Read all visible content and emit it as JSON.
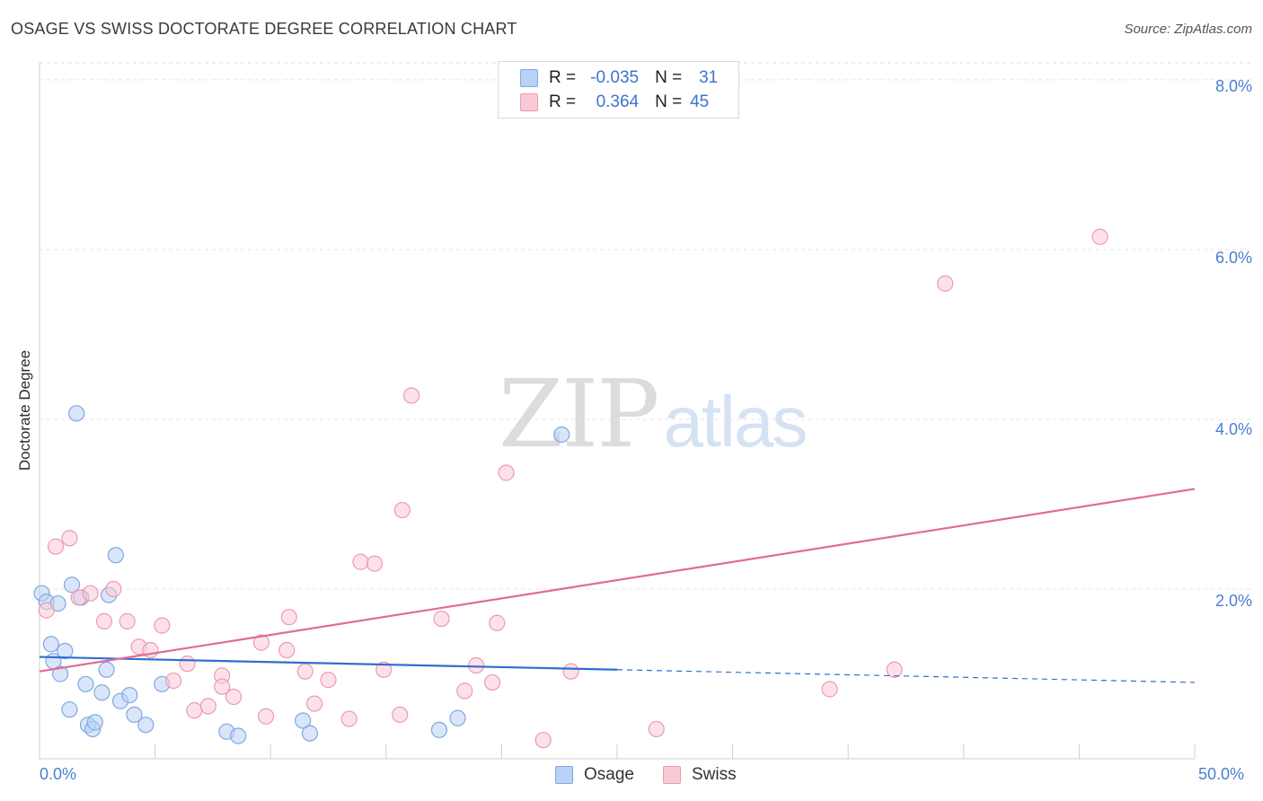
{
  "title": "OSAGE VS SWISS DOCTORATE DEGREE CORRELATION CHART",
  "source": "Source: ZipAtlas.com",
  "watermark": {
    "part1": "ZIP",
    "part2": "atlas"
  },
  "legend": {
    "rows": [
      {
        "r_label": "R =",
        "r_value": "-0.035",
        "n_label": "N =",
        "n_value": "31",
        "color": "#7fa8e0"
      },
      {
        "r_label": "R =",
        "r_value": "0.364",
        "n_label": "N =",
        "n_value": "45",
        "color": "#ec9ab2"
      }
    ]
  },
  "bottom_legend": [
    {
      "label": "Osage",
      "color": "#b9d2f5"
    },
    {
      "label": "Swiss",
      "color": "#f9cad6"
    }
  ],
  "chart_data": {
    "type": "scatter",
    "title": "OSAGE VS SWISS DOCTORATE DEGREE CORRELATION CHART",
    "xlabel": "",
    "ylabel": "Doctorate Degree",
    "xlim": [
      0,
      50
    ],
    "ylim": [
      0,
      8.2
    ],
    "x_tick_labels": [
      "0.0%",
      "50.0%"
    ],
    "y_ticks": [
      2,
      4,
      6,
      8
    ],
    "y_tick_labels": [
      "2.0%",
      "4.0%",
      "6.0%",
      "8.0%"
    ],
    "grid": true,
    "series": [
      {
        "name": "Osage",
        "color": "#7fa8e0",
        "fill": "#b9d2f5",
        "trend": {
          "x0": 0,
          "y0": 1.2,
          "x1": 25,
          "y1": 1.05,
          "dashed_to_x": 50,
          "dashed_to_y": 0.9,
          "line_color": "#2f6fcf"
        },
        "points": [
          [
            0.1,
            1.95
          ],
          [
            0.3,
            1.85
          ],
          [
            0.8,
            1.83
          ],
          [
            1.4,
            2.05
          ],
          [
            1.6,
            4.07
          ],
          [
            1.8,
            1.9
          ],
          [
            3.0,
            1.93
          ],
          [
            3.3,
            2.4
          ],
          [
            0.5,
            1.35
          ],
          [
            0.6,
            1.15
          ],
          [
            1.1,
            1.27
          ],
          [
            0.9,
            1.0
          ],
          [
            2.0,
            0.88
          ],
          [
            2.9,
            1.05
          ],
          [
            2.7,
            0.78
          ],
          [
            3.5,
            0.68
          ],
          [
            3.9,
            0.75
          ],
          [
            5.3,
            0.88
          ],
          [
            1.3,
            0.58
          ],
          [
            2.1,
            0.4
          ],
          [
            2.3,
            0.35
          ],
          [
            2.4,
            0.43
          ],
          [
            4.1,
            0.52
          ],
          [
            4.6,
            0.4
          ],
          [
            8.1,
            0.32
          ],
          [
            8.6,
            0.27
          ],
          [
            11.4,
            0.45
          ],
          [
            11.7,
            0.3
          ],
          [
            17.3,
            0.34
          ],
          [
            18.1,
            0.48
          ],
          [
            22.6,
            3.82
          ]
        ]
      },
      {
        "name": "Swiss",
        "color": "#ec9ab2",
        "fill": "#f9cad6",
        "trend": {
          "x0": 0,
          "y0": 1.03,
          "x1": 50,
          "y1": 3.18,
          "line_color": "#e06b95"
        },
        "points": [
          [
            0.3,
            1.75
          ],
          [
            0.7,
            2.5
          ],
          [
            1.3,
            2.6
          ],
          [
            1.7,
            1.9
          ],
          [
            2.2,
            1.95
          ],
          [
            3.2,
            2.0
          ],
          [
            2.8,
            1.62
          ],
          [
            3.8,
            1.62
          ],
          [
            5.3,
            1.57
          ],
          [
            4.3,
            1.32
          ],
          [
            4.8,
            1.28
          ],
          [
            6.4,
            1.12
          ],
          [
            5.8,
            0.92
          ],
          [
            7.9,
            0.98
          ],
          [
            7.9,
            0.85
          ],
          [
            7.3,
            0.62
          ],
          [
            6.7,
            0.57
          ],
          [
            8.4,
            0.73
          ],
          [
            9.6,
            1.37
          ],
          [
            9.8,
            0.5
          ],
          [
            10.7,
            1.28
          ],
          [
            10.8,
            1.67
          ],
          [
            11.5,
            1.03
          ],
          [
            11.9,
            0.65
          ],
          [
            12.5,
            0.93
          ],
          [
            13.4,
            0.47
          ],
          [
            13.9,
            2.32
          ],
          [
            14.5,
            2.3
          ],
          [
            14.9,
            1.05
          ],
          [
            15.6,
            0.52
          ],
          [
            15.7,
            2.93
          ],
          [
            16.1,
            4.28
          ],
          [
            17.4,
            1.65
          ],
          [
            18.4,
            0.8
          ],
          [
            18.9,
            1.1
          ],
          [
            19.6,
            0.9
          ],
          [
            19.8,
            1.6
          ],
          [
            20.2,
            3.37
          ],
          [
            21.8,
            0.22
          ],
          [
            23.0,
            1.03
          ],
          [
            26.7,
            0.35
          ],
          [
            34.2,
            0.82
          ],
          [
            37.0,
            1.05
          ],
          [
            39.2,
            5.6
          ],
          [
            45.9,
            6.15
          ]
        ]
      }
    ]
  }
}
